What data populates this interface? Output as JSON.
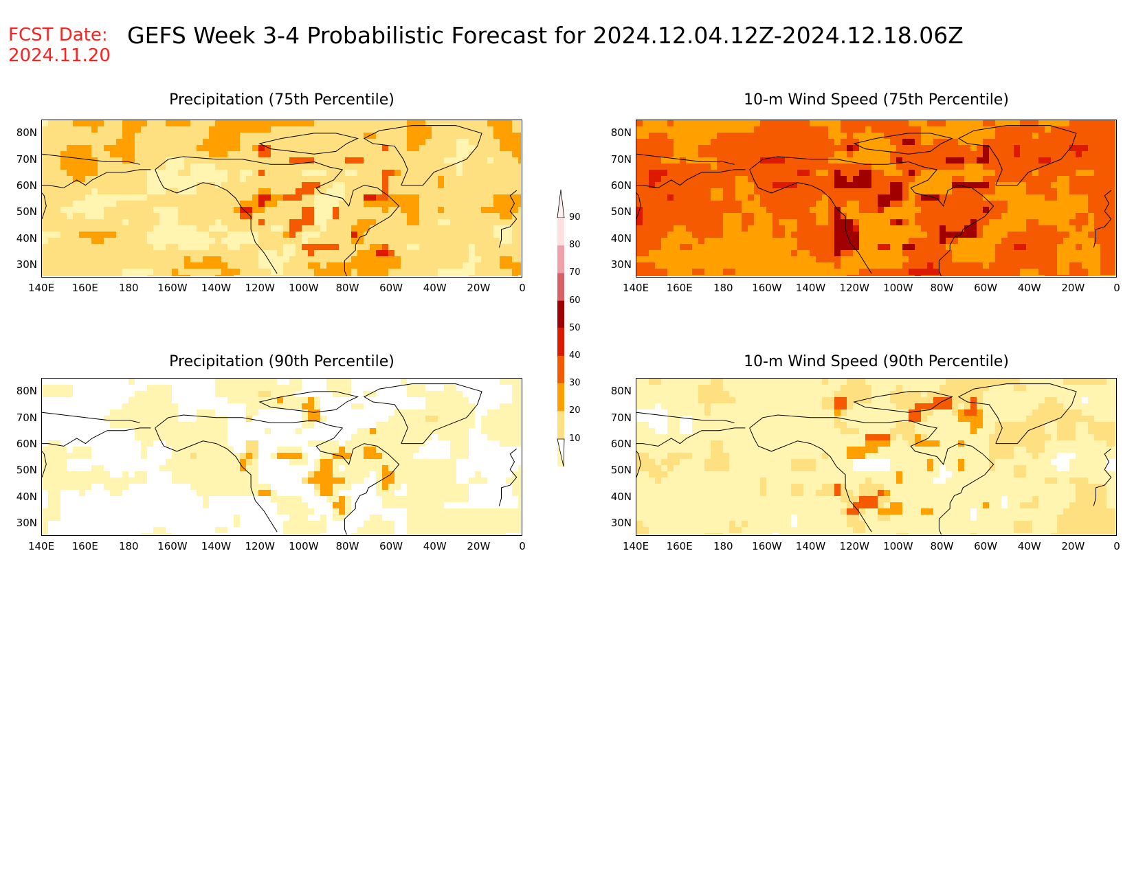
{
  "header": {
    "fcst_label": "FCST Date:",
    "fcst_date": "2024.11.20",
    "title": "GEFS Week 3-4 Probabilistic Forecast for 2024.12.04.12Z-2024.12.18.06Z"
  },
  "axes": {
    "lat_ticks": [
      "80N",
      "70N",
      "60N",
      "50N",
      "40N",
      "30N"
    ],
    "lon_ticks": [
      "140E",
      "160E",
      "180",
      "160W",
      "140W",
      "120W",
      "100W",
      "80W",
      "60W",
      "40W",
      "20W",
      "0"
    ]
  },
  "panels": [
    {
      "id": "precip75",
      "title": "Precipitation (75th Percentile)",
      "level": 25
    },
    {
      "id": "wind75",
      "title": "10-m Wind Speed (75th Percentile)",
      "level": 42
    },
    {
      "id": "precip90",
      "title": "Precipitation (90th Percentile)",
      "level": 11
    },
    {
      "id": "wind90",
      "title": "10-m Wind Speed (90th Percentile)",
      "level": 17
    }
  ],
  "colorbar": {
    "labels": [
      "90",
      "80",
      "70",
      "60",
      "50",
      "40",
      "30",
      "20",
      "10"
    ],
    "colors": [
      "#ffe0e0",
      "#f0a0a8",
      "#d86068",
      "#a00000",
      "#dd1a00",
      "#f55a00",
      "#ffa000",
      "#ffe080",
      "#fff5b0"
    ]
  }
}
